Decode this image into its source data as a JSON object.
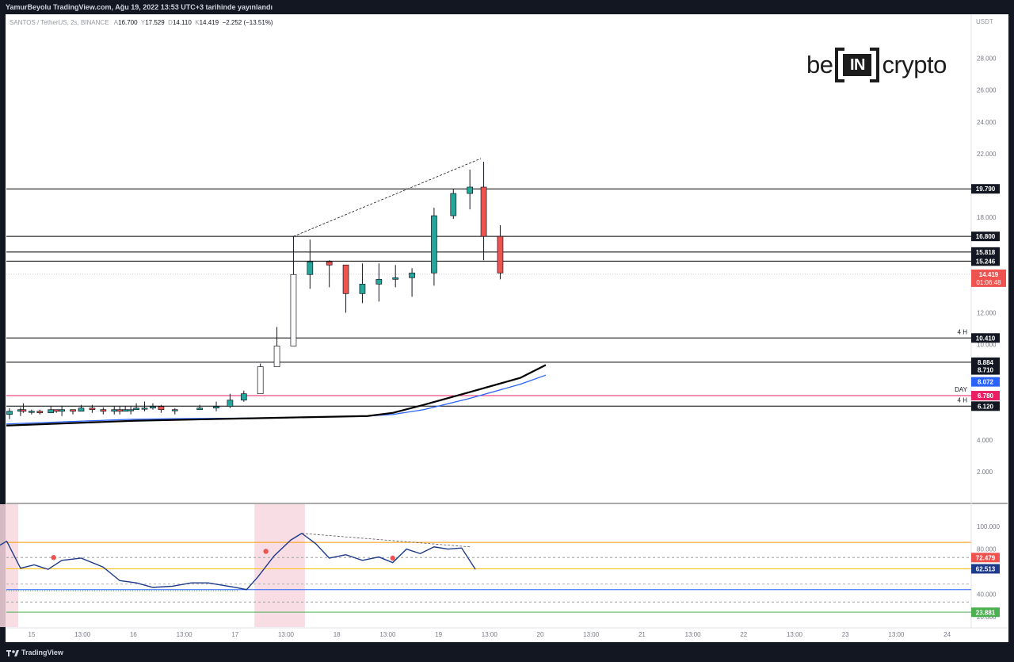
{
  "header": {
    "publisher": "YamurBeyolu TradingView.com, Ağu 19, 2022 13:53 UTC+3 tarihinde yayınlandı"
  },
  "legend": {
    "symbol": "SANTOS / TetherUS, 2s, BINANCE",
    "open_label": "A",
    "open": "16.700",
    "high_label": "Y",
    "high": "17.529",
    "low_label": "D",
    "low": "14.110",
    "close_label": "K",
    "close": "14.419",
    "change": "−2.252 (−13.51%)"
  },
  "currency": "USDT",
  "brand": {
    "left": "be",
    "mid": "IN",
    "right": "crypto"
  },
  "footer": {
    "logo_text": "TradingView"
  },
  "colors": {
    "up": "#26a69a",
    "down": "#ef5350",
    "panel": "#131722",
    "ma_black": "#000000",
    "ma_blue": "#2962ff",
    "day_line": "#e91e63",
    "rsi_line": "#1e3a8a"
  },
  "chart_data": [
    {
      "type": "candlestick",
      "title": "",
      "y_axis": {
        "range": [
          0,
          30
        ],
        "ticks": [
          "28.000",
          "26.000",
          "24.000",
          "22.000",
          "18.000",
          "12.000",
          "10.000",
          "4.000",
          "2.000"
        ]
      },
      "x_axis": {
        "ticks": [
          "15",
          "13:00",
          "16",
          "13:00",
          "17",
          "13:00",
          "18",
          "13:00",
          "19",
          "13:00",
          "20",
          "13:00",
          "21",
          "13:00",
          "22",
          "13:00",
          "23",
          "13:00",
          "24"
        ]
      },
      "levels": [
        {
          "label": "19.790",
          "value": 19.79,
          "color": "#000000"
        },
        {
          "label": "16.800",
          "value": 16.8,
          "color": "#000000"
        },
        {
          "label": "15.818",
          "value": 15.818,
          "color": "#000000"
        },
        {
          "label": "15.246",
          "value": 15.246,
          "color": "#000000"
        },
        {
          "label": "10.410",
          "value": 10.41,
          "color": "#000000",
          "tag": "4 H"
        },
        {
          "label": "8.884",
          "value": 8.884,
          "color": "#000000"
        },
        {
          "label": "6.780",
          "value": 6.78,
          "color": "#e91e63",
          "tag": "DAY"
        },
        {
          "label": "6.120",
          "value": 6.12,
          "color": "#000000",
          "tag": "4 H"
        }
      ],
      "price_tag": {
        "value": "14.419",
        "countdown": "01:06:48",
        "price": 14.419
      },
      "ma_tags": [
        {
          "label": "8.710",
          "color": "#000000"
        },
        {
          "label": "8.072",
          "color": "#2962ff"
        }
      ],
      "candles": [
        [
          14.6,
          5.8,
          5.3,
          6.0
        ],
        [
          15.0,
          5.9,
          5.5,
          6.05
        ],
        [
          15.1,
          5.8,
          5.7,
          6.3
        ],
        [
          15.4,
          5.8,
          5.6,
          5.9
        ],
        [
          15.7,
          5.7,
          5.6,
          5.9
        ],
        [
          16.1,
          5.9,
          5.8,
          6.1
        ],
        [
          16.3,
          5.8,
          5.7,
          5.9
        ],
        [
          16.5,
          5.9,
          5.5,
          6.15
        ],
        [
          16.9,
          5.8,
          5.6,
          5.9
        ],
        [
          17.2,
          6.0,
          5.95,
          6.2
        ],
        [
          17.6,
          5.9,
          5.7,
          6.2
        ],
        [
          18.0,
          5.8,
          5.6,
          6.05
        ],
        [
          18.4,
          5.9,
          5.6,
          6.1
        ],
        [
          18.6,
          5.8,
          5.6,
          6.1
        ],
        [
          18.8,
          5.9,
          5.8,
          6.1
        ],
        [
          19.0,
          5.9,
          5.6,
          6.1
        ],
        [
          19.2,
          6.0,
          5.9,
          6.3
        ],
        [
          19.5,
          6.0,
          5.8,
          6.4
        ],
        [
          19.8,
          6.1,
          5.9,
          6.3
        ],
        [
          20.1,
          5.9,
          5.7,
          6.2
        ],
        [
          20.6,
          5.9,
          5.6,
          6.0
        ],
        [
          21.5,
          6.0,
          5.9,
          6.2
        ],
        [
          22.1,
          6.1,
          5.8,
          6.4
        ],
        [
          22.6,
          6.5,
          6.0,
          6.9
        ],
        [
          23.1,
          6.9,
          6.4,
          7.1
        ],
        [
          23.7,
          8.6,
          7.3,
          8.8
        ],
        [
          24.3,
          9.9,
          9.1,
          11.1
        ],
        [
          24.9,
          14.4,
          12.7,
          16.8
        ],
        [
          25.5,
          15.2,
          13.5,
          16.6
        ],
        [
          26.2,
          15.0,
          13.6,
          15.3
        ],
        [
          26.8,
          13.2,
          12.0,
          14.1
        ],
        [
          27.4,
          13.8,
          12.6,
          15.1
        ],
        [
          28.0,
          14.1,
          12.7,
          15.1
        ],
        [
          28.6,
          14.2,
          13.6,
          15.0
        ],
        [
          29.2,
          14.5,
          13.0,
          14.8
        ],
        [
          30.0,
          18.1,
          13.7,
          18.6
        ],
        [
          30.7,
          19.5,
          17.9,
          19.8
        ],
        [
          31.3,
          19.9,
          18.5,
          21.0
        ],
        [
          31.8,
          16.8,
          15.3,
          21.5
        ],
        [
          32.4,
          14.5,
          14.1,
          17.5
        ]
      ],
      "ma_black": [
        [
          0,
          4.9
        ],
        [
          5,
          5.2
        ],
        [
          12,
          5.4
        ],
        [
          18,
          5.5
        ],
        [
          22,
          5.7
        ],
        [
          24,
          6.2
        ],
        [
          27,
          7.0
        ],
        [
          30,
          7.9
        ],
        [
          32.5,
          8.71
        ]
      ],
      "ma_blue": [
        [
          0,
          5.0
        ],
        [
          5,
          5.3
        ],
        [
          12,
          5.4
        ],
        [
          18,
          5.5
        ],
        [
          22,
          5.6
        ],
        [
          24,
          5.9
        ],
        [
          27,
          6.6
        ],
        [
          30,
          7.5
        ],
        [
          32.5,
          8.07
        ]
      ],
      "trendline": [
        [
          24.9,
          16.8
        ],
        [
          31.7,
          21.7
        ]
      ]
    },
    {
      "type": "line",
      "title": "",
      "y_axis": {
        "range": [
          10,
          110
        ],
        "ticks": [
          "100.000",
          "80.000",
          "40.000",
          "20.000"
        ]
      },
      "value_tags": [
        {
          "label": "72.479",
          "color": "#ef5350"
        },
        {
          "label": "62.513",
          "color": "#1e3a8a"
        },
        {
          "label": "23.881",
          "color": "#4caf50"
        }
      ],
      "levels": [
        {
          "value": 86,
          "color": "#ff9800",
          "style": "solid"
        },
        {
          "value": 72.5,
          "color": "#9e9e9e",
          "style": "dashed"
        },
        {
          "value": 62.5,
          "color": "#ffc107",
          "style": "solid"
        },
        {
          "value": 49,
          "color": "#b0b0b0",
          "style": "dashed"
        },
        {
          "value": 44,
          "color": "#2962ff",
          "style": "solid"
        },
        {
          "value": 33,
          "color": "#9e9e9e",
          "style": "dashed"
        },
        {
          "value": 24,
          "color": "#4caf50",
          "style": "solid"
        }
      ],
      "highlight_ranges": [
        [
          14.0,
          14.8
        ],
        [
          23.6,
          25.2
        ]
      ],
      "series": [
        {
          "name": "",
          "points": [
            [
              14.0,
              80
            ],
            [
              14.5,
              87
            ],
            [
              15.0,
              63
            ],
            [
              15.5,
              66
            ],
            [
              16.0,
              62
            ],
            [
              16.5,
              70
            ],
            [
              17.2,
              72
            ],
            [
              18.0,
              64
            ],
            [
              18.6,
              52
            ],
            [
              19.2,
              50
            ],
            [
              19.8,
              46
            ],
            [
              20.5,
              47
            ],
            [
              21.2,
              50
            ],
            [
              21.8,
              50
            ],
            [
              22.3,
              48
            ],
            [
              22.8,
              46
            ],
            [
              23.2,
              44
            ],
            [
              23.6,
              55
            ],
            [
              24.2,
              74
            ],
            [
              24.8,
              88
            ],
            [
              25.2,
              94
            ],
            [
              25.7,
              85
            ],
            [
              26.2,
              72
            ],
            [
              26.8,
              75
            ],
            [
              27.4,
              70
            ],
            [
              28.0,
              73
            ],
            [
              28.5,
              68
            ],
            [
              29.0,
              80
            ],
            [
              29.5,
              76
            ],
            [
              30.0,
              82
            ],
            [
              30.5,
              80
            ],
            [
              31.0,
              81
            ],
            [
              31.5,
              62
            ]
          ]
        }
      ],
      "markers": [
        [
          14.0,
          80
        ],
        [
          16.2,
          72.5
        ],
        [
          23.9,
          78
        ],
        [
          28.5,
          72
        ]
      ],
      "trendline": [
        [
          25.2,
          94
        ],
        [
          31.3,
          82
        ]
      ]
    }
  ]
}
